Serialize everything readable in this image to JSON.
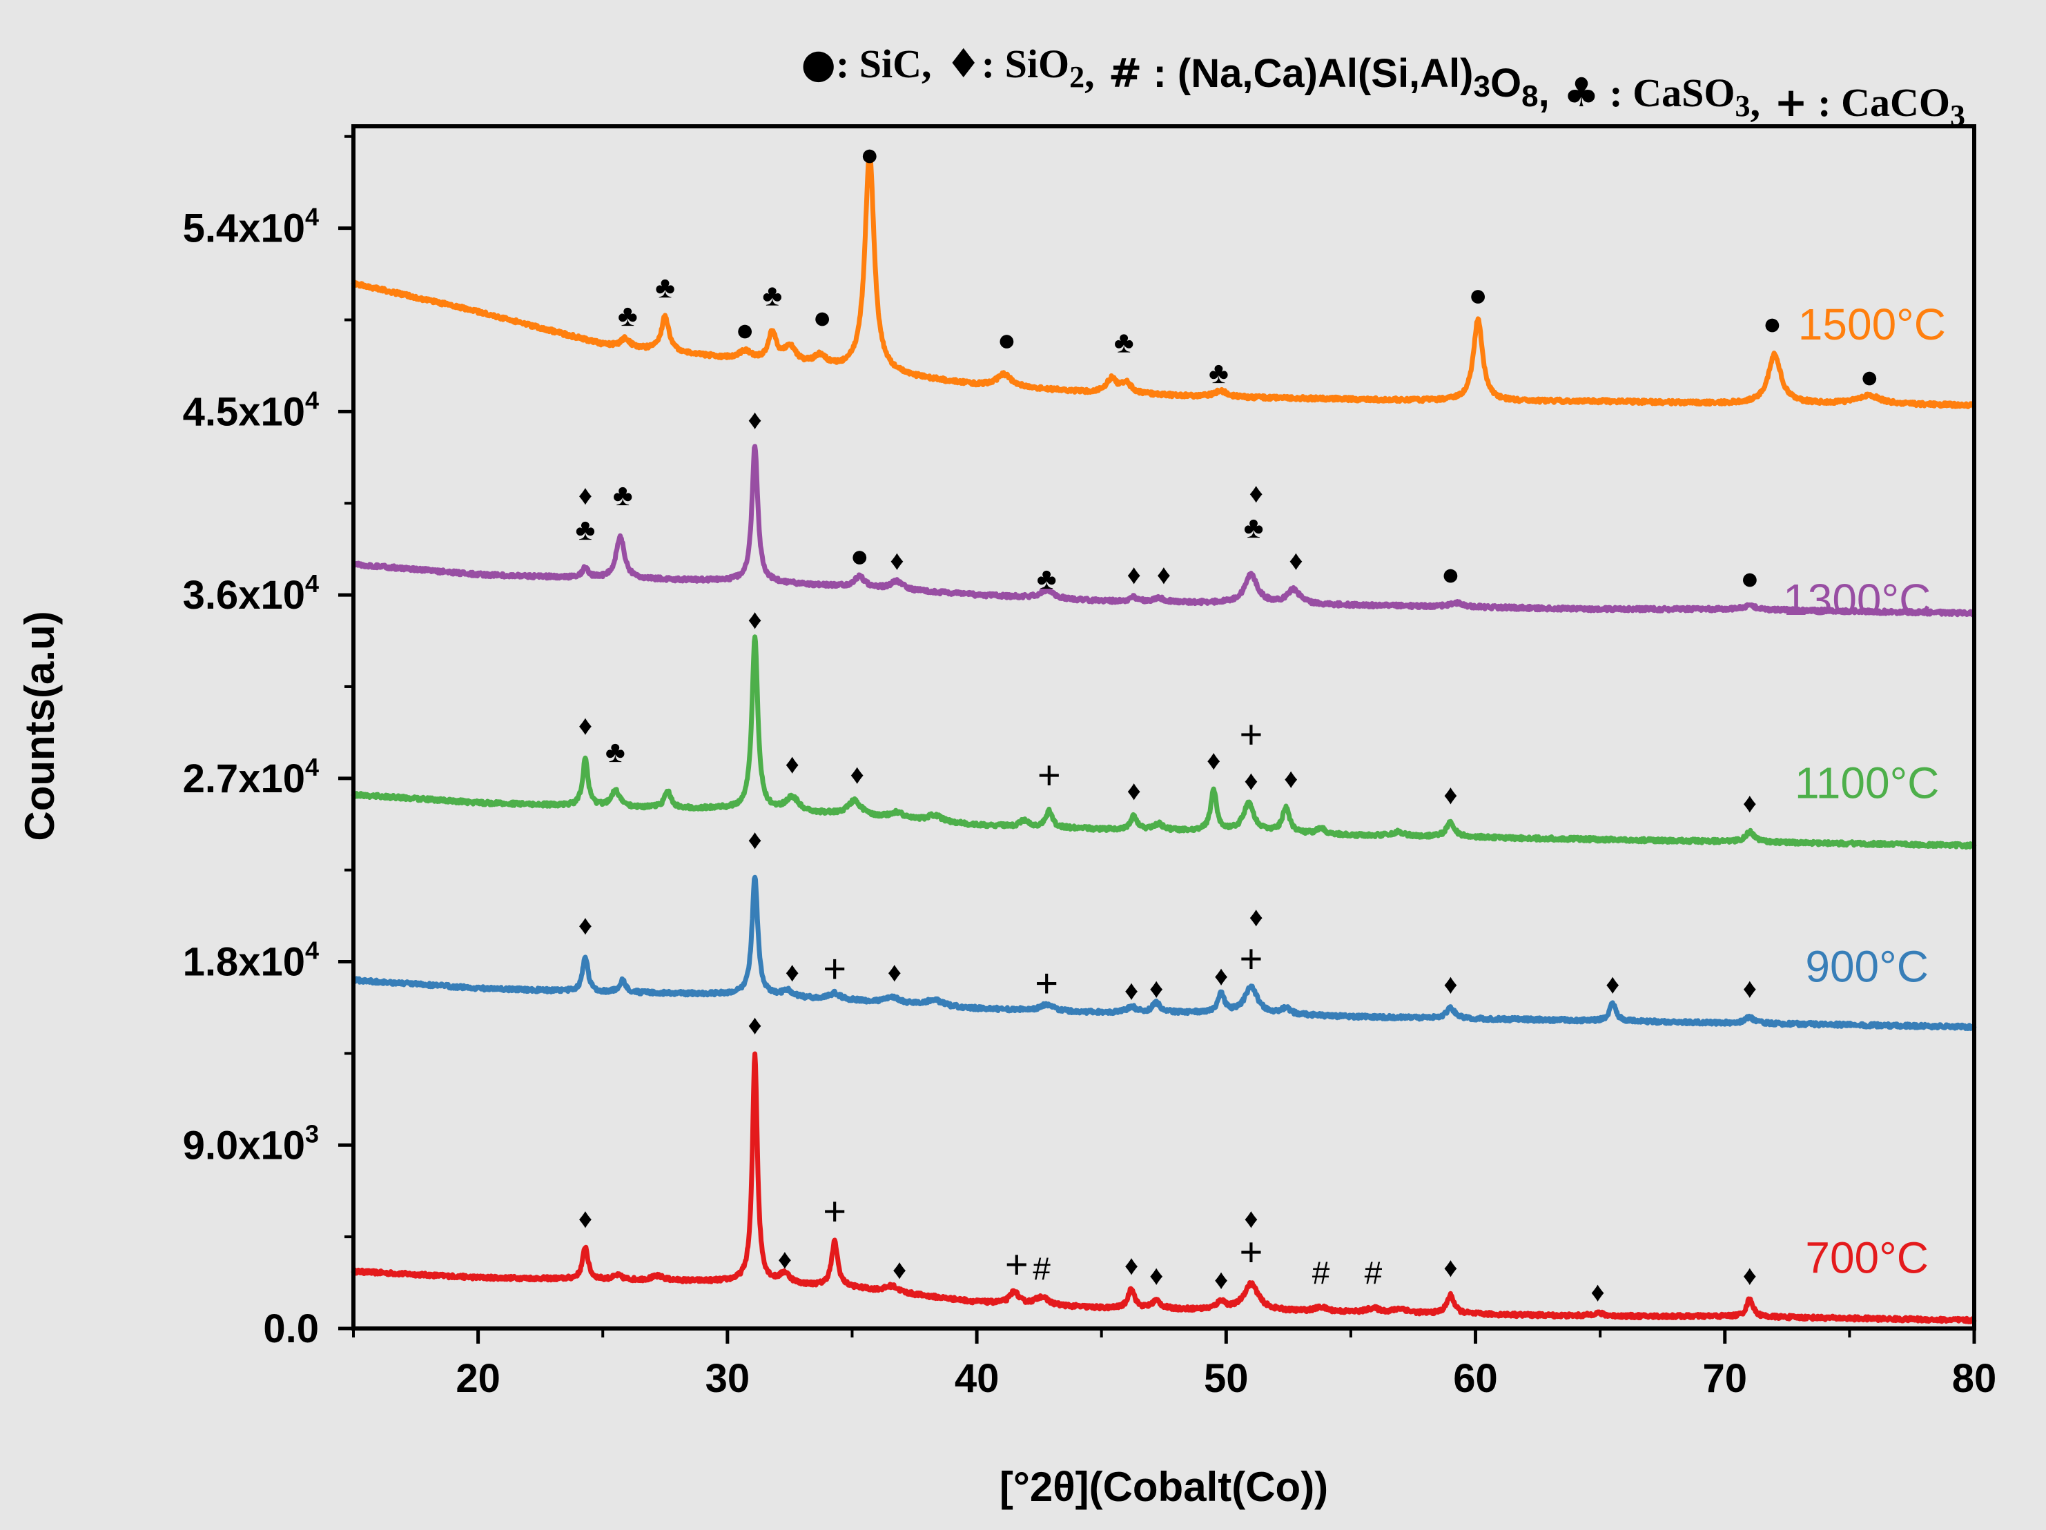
{
  "chart_data": {
    "type": "line",
    "xlabel": "[°2θ](Cobalt(Co))",
    "ylabel": "Counts(a.u)",
    "xlim": [
      15,
      80
    ],
    "ylim": [
      0,
      59000
    ],
    "x_ticks": [
      20,
      30,
      40,
      50,
      60,
      70,
      80
    ],
    "x_tick_labels": [
      "20",
      "30",
      "40",
      "50",
      "60",
      "70",
      "80"
    ],
    "y_ticks": [
      0,
      9000,
      18000,
      27000,
      36000,
      45000,
      54000
    ],
    "y_tick_labels": [
      {
        "mantissa": "0.0",
        "exp": ""
      },
      {
        "mantissa": "9.0x10",
        "exp": "3"
      },
      {
        "mantissa": "1.8x10",
        "exp": "4"
      },
      {
        "mantissa": "2.7x10",
        "exp": "4"
      },
      {
        "mantissa": "3.6x10",
        "exp": "4"
      },
      {
        "mantissa": "4.5x10",
        "exp": "4"
      },
      {
        "mantissa": "5.4x10",
        "exp": "4"
      }
    ],
    "grid": false,
    "legend": {
      "placement": "top",
      "entries": [
        {
          "symbol": "●",
          "label": ": SiC,"
        },
        {
          "symbol": "♦",
          "label": ": SiO",
          "sub": "2",
          "suffix": ","
        },
        {
          "symbol": "#",
          "label": " : (Na,Ca)Al(Si,Al)",
          "sub": "3",
          "label2": "O",
          "sub2": "8",
          "suffix": ","
        },
        {
          "symbol": "♣",
          "label": " : CaSO",
          "sub": "3",
          "suffix": ","
        },
        {
          "symbol": "+",
          "label": " : CaCO",
          "sub": "3",
          "suffix": ""
        }
      ]
    },
    "series": [
      {
        "name": "700°C",
        "color": "#e41a1c",
        "label_x": 75.7,
        "label_y": 3300,
        "baseline": [
          [
            15,
            2800
          ],
          [
            20,
            2500
          ],
          [
            25,
            2400
          ],
          [
            30,
            2300
          ],
          [
            35,
            2000
          ],
          [
            40,
            1300
          ],
          [
            45,
            1000
          ],
          [
            50,
            900
          ],
          [
            55,
            800
          ],
          [
            60,
            700
          ],
          [
            65,
            600
          ],
          [
            70,
            600
          ],
          [
            75,
            500
          ],
          [
            80,
            400
          ]
        ],
        "peaks": [
          [
            24.3,
            1600,
            0.13
          ],
          [
            25.6,
            200,
            0.2
          ],
          [
            27.2,
            200,
            0.3
          ],
          [
            31.1,
            11200,
            0.12
          ],
          [
            32.3,
            500,
            0.25
          ],
          [
            34.3,
            2200,
            0.15
          ],
          [
            36.6,
            300,
            0.3
          ],
          [
            41.5,
            600,
            0.2
          ],
          [
            42.6,
            400,
            0.3
          ],
          [
            46.2,
            1000,
            0.15
          ],
          [
            47.2,
            400,
            0.2
          ],
          [
            49.8,
            400,
            0.2
          ],
          [
            51.0,
            1300,
            0.35
          ],
          [
            53.8,
            200,
            0.3
          ],
          [
            55.9,
            200,
            0.3
          ],
          [
            57.0,
            200,
            0.3
          ],
          [
            59.0,
            900,
            0.18
          ],
          [
            64.9,
            150,
            0.3
          ],
          [
            71.0,
            900,
            0.15
          ]
        ],
        "markers": [
          {
            "x": 24.3,
            "y": 5300,
            "s": "♦"
          },
          {
            "x": 31.1,
            "y": 14800,
            "s": "♦"
          },
          {
            "x": 32.3,
            "y": 3300,
            "s": "♦"
          },
          {
            "x": 34.3,
            "y": 5600,
            "s": "+"
          },
          {
            "x": 36.9,
            "y": 2800,
            "s": "♦"
          },
          {
            "x": 41.6,
            "y": 3000,
            "s": "+"
          },
          {
            "x": 42.6,
            "y": 2800,
            "s": "#"
          },
          {
            "x": 46.2,
            "y": 3000,
            "s": "♦"
          },
          {
            "x": 47.2,
            "y": 2500,
            "s": "♦"
          },
          {
            "x": 49.8,
            "y": 2300,
            "s": "♦"
          },
          {
            "x": 51.0,
            "y": 5300,
            "s": "♦"
          },
          {
            "x": 51.0,
            "y": 3600,
            "s": "+"
          },
          {
            "x": 53.8,
            "y": 2600,
            "s": "#"
          },
          {
            "x": 55.9,
            "y": 2600,
            "s": "#"
          },
          {
            "x": 59.0,
            "y": 2900,
            "s": "♦"
          },
          {
            "x": 64.9,
            "y": 1700,
            "s": "♦"
          },
          {
            "x": 71.0,
            "y": 2500,
            "s": "♦"
          }
        ]
      },
      {
        "name": "900°C",
        "color": "#377eb8",
        "label_x": 75.7,
        "label_y": 17600,
        "baseline": [
          [
            15,
            17100
          ],
          [
            20,
            16700
          ],
          [
            25,
            16500
          ],
          [
            30,
            16400
          ],
          [
            35,
            16100
          ],
          [
            40,
            15700
          ],
          [
            45,
            15500
          ],
          [
            50,
            15500
          ],
          [
            55,
            15300
          ],
          [
            60,
            15200
          ],
          [
            65,
            15100
          ],
          [
            70,
            15000
          ],
          [
            75,
            14900
          ],
          [
            80,
            14800
          ]
        ],
        "peaks": [
          [
            24.3,
            1700,
            0.13
          ],
          [
            25.8,
            600,
            0.15
          ],
          [
            31.1,
            5800,
            0.14
          ],
          [
            32.4,
            300,
            0.25
          ],
          [
            34.3,
            300,
            0.25
          ],
          [
            36.6,
            300,
            0.3
          ],
          [
            38.3,
            300,
            0.35
          ],
          [
            42.8,
            300,
            0.3
          ],
          [
            46.2,
            300,
            0.2
          ],
          [
            47.2,
            500,
            0.18
          ],
          [
            49.8,
            900,
            0.15
          ],
          [
            51.0,
            1300,
            0.3
          ],
          [
            52.4,
            300,
            0.2
          ],
          [
            59.0,
            500,
            0.2
          ],
          [
            65.5,
            900,
            0.15
          ],
          [
            71.0,
            300,
            0.2
          ]
        ],
        "markers": [
          {
            "x": 24.3,
            "y": 19700,
            "s": "♦"
          },
          {
            "x": 31.1,
            "y": 23900,
            "s": "♦"
          },
          {
            "x": 32.6,
            "y": 17400,
            "s": "♦"
          },
          {
            "x": 34.3,
            "y": 17500,
            "s": "+"
          },
          {
            "x": 36.7,
            "y": 17400,
            "s": "♦"
          },
          {
            "x": 42.8,
            "y": 16800,
            "s": "+"
          },
          {
            "x": 46.2,
            "y": 16500,
            "s": "♦"
          },
          {
            "x": 47.2,
            "y": 16600,
            "s": "♦"
          },
          {
            "x": 49.8,
            "y": 17200,
            "s": "♦"
          },
          {
            "x": 51.2,
            "y": 20100,
            "s": "♦"
          },
          {
            "x": 51.0,
            "y": 18000,
            "s": "+"
          },
          {
            "x": 59.0,
            "y": 16800,
            "s": "♦"
          },
          {
            "x": 65.5,
            "y": 16800,
            "s": "♦"
          },
          {
            "x": 71.0,
            "y": 16600,
            "s": "♦"
          }
        ]
      },
      {
        "name": "1100°C",
        "color": "#4daf4a",
        "label_x": 75.7,
        "label_y": 26600,
        "baseline": [
          [
            15,
            26200
          ],
          [
            20,
            25800
          ],
          [
            25,
            25600
          ],
          [
            30,
            25500
          ],
          [
            35,
            25200
          ],
          [
            40,
            24700
          ],
          [
            45,
            24500
          ],
          [
            50,
            24400
          ],
          [
            55,
            24200
          ],
          [
            60,
            24100
          ],
          [
            65,
            24000
          ],
          [
            70,
            23900
          ],
          [
            75,
            23800
          ],
          [
            80,
            23700
          ]
        ],
        "peaks": [
          [
            24.3,
            2300,
            0.13
          ],
          [
            25.5,
            800,
            0.2
          ],
          [
            27.6,
            800,
            0.15
          ],
          [
            31.1,
            8500,
            0.14
          ],
          [
            32.6,
            700,
            0.3
          ],
          [
            35.1,
            700,
            0.3
          ],
          [
            36.8,
            300,
            0.3
          ],
          [
            38.3,
            300,
            0.35
          ],
          [
            41.9,
            300,
            0.2
          ],
          [
            42.9,
            800,
            0.15
          ],
          [
            46.3,
            700,
            0.15
          ],
          [
            47.3,
            300,
            0.2
          ],
          [
            49.5,
            2000,
            0.14
          ],
          [
            50.9,
            1400,
            0.25
          ],
          [
            52.4,
            1200,
            0.18
          ],
          [
            53.8,
            300,
            0.2
          ],
          [
            56.9,
            200,
            0.3
          ],
          [
            59.0,
            700,
            0.2
          ],
          [
            71.0,
            500,
            0.2
          ]
        ],
        "markers": [
          {
            "x": 24.3,
            "y": 29500,
            "s": "♦"
          },
          {
            "x": 25.5,
            "y": 28200,
            "s": "♣"
          },
          {
            "x": 31.1,
            "y": 34700,
            "s": "♦"
          },
          {
            "x": 32.6,
            "y": 27600,
            "s": "♦"
          },
          {
            "x": 35.2,
            "y": 27100,
            "s": "♦"
          },
          {
            "x": 42.9,
            "y": 27000,
            "s": "+"
          },
          {
            "x": 46.3,
            "y": 26300,
            "s": "♦"
          },
          {
            "x": 49.5,
            "y": 27800,
            "s": "♦"
          },
          {
            "x": 51.0,
            "y": 29000,
            "s": "+"
          },
          {
            "x": 51.0,
            "y": 26800,
            "s": "♦"
          },
          {
            "x": 52.6,
            "y": 26900,
            "s": "♦"
          },
          {
            "x": 59.0,
            "y": 26100,
            "s": "♦"
          },
          {
            "x": 71.0,
            "y": 25700,
            "s": "♦"
          }
        ]
      },
      {
        "name": "1300°C",
        "color": "#984ea3",
        "label_x": 75.3,
        "label_y": 35600,
        "baseline": [
          [
            15,
            37500
          ],
          [
            20,
            37000
          ],
          [
            25,
            36800
          ],
          [
            30,
            36700
          ],
          [
            35,
            36400
          ],
          [
            40,
            36000
          ],
          [
            45,
            35700
          ],
          [
            50,
            35600
          ],
          [
            55,
            35500
          ],
          [
            60,
            35400
          ],
          [
            65,
            35300
          ],
          [
            70,
            35300
          ],
          [
            75,
            35200
          ],
          [
            80,
            35100
          ]
        ],
        "peaks": [
          [
            24.3,
            500,
            0.15
          ],
          [
            25.7,
            2100,
            0.2
          ],
          [
            31.1,
            6700,
            0.14
          ],
          [
            35.3,
            500,
            0.25
          ],
          [
            36.8,
            400,
            0.3
          ],
          [
            42.8,
            400,
            0.3
          ],
          [
            46.3,
            200,
            0.2
          ],
          [
            47.3,
            200,
            0.2
          ],
          [
            51.0,
            1400,
            0.3
          ],
          [
            52.7,
            700,
            0.3
          ],
          [
            59.2,
            200,
            0.3
          ],
          [
            71.0,
            200,
            0.3
          ]
        ],
        "markers": [
          {
            "x": 24.3,
            "y": 40800,
            "s": "♦"
          },
          {
            "x": 24.3,
            "y": 39100,
            "s": "♣"
          },
          {
            "x": 25.8,
            "y": 40800,
            "s": "♣"
          },
          {
            "x": 31.1,
            "y": 44500,
            "s": "♦"
          },
          {
            "x": 35.3,
            "y": 37800,
            "s": "●"
          },
          {
            "x": 36.8,
            "y": 37600,
            "s": "♦"
          },
          {
            "x": 42.8,
            "y": 36700,
            "s": "♣"
          },
          {
            "x": 46.3,
            "y": 36900,
            "s": "♦"
          },
          {
            "x": 47.5,
            "y": 36900,
            "s": "♦"
          },
          {
            "x": 51.2,
            "y": 40900,
            "s": "♦"
          },
          {
            "x": 51.1,
            "y": 39200,
            "s": "♣"
          },
          {
            "x": 52.8,
            "y": 37600,
            "s": "♦"
          },
          {
            "x": 59.0,
            "y": 36900,
            "s": "●"
          },
          {
            "x": 71.0,
            "y": 36700,
            "s": "●"
          }
        ]
      },
      {
        "name": "1500°C",
        "color": "#ff7f0e",
        "label_x": 75.9,
        "label_y": 49100,
        "baseline": [
          [
            15,
            51300
          ],
          [
            20,
            49900
          ],
          [
            25,
            48300
          ],
          [
            30,
            47600
          ],
          [
            35,
            47000
          ],
          [
            40,
            46300
          ],
          [
            45,
            45900
          ],
          [
            50,
            45700
          ],
          [
            55,
            45600
          ],
          [
            60,
            45500
          ],
          [
            65,
            45500
          ],
          [
            70,
            45400
          ],
          [
            75,
            45400
          ],
          [
            80,
            45300
          ]
        ],
        "peaks": [
          [
            25.9,
            400,
            0.2
          ],
          [
            27.5,
            1700,
            0.18
          ],
          [
            30.7,
            400,
            0.3
          ],
          [
            31.8,
            1400,
            0.2
          ],
          [
            32.5,
            800,
            0.3
          ],
          [
            33.7,
            500,
            0.3
          ],
          [
            35.7,
            10800,
            0.22
          ],
          [
            41.1,
            600,
            0.35
          ],
          [
            45.4,
            700,
            0.25
          ],
          [
            46.0,
            500,
            0.25
          ],
          [
            49.8,
            300,
            0.3
          ],
          [
            60.1,
            4000,
            0.22
          ],
          [
            72.0,
            2400,
            0.3
          ],
          [
            75.8,
            400,
            0.5
          ]
        ],
        "markers": [
          {
            "x": 26.0,
            "y": 49600,
            "s": "♣"
          },
          {
            "x": 27.5,
            "y": 51000,
            "s": "♣"
          },
          {
            "x": 30.7,
            "y": 48900,
            "s": "●"
          },
          {
            "x": 31.8,
            "y": 50600,
            "s": "♣"
          },
          {
            "x": 33.8,
            "y": 49500,
            "s": "●"
          },
          {
            "x": 35.7,
            "y": 57500,
            "s": "●"
          },
          {
            "x": 41.2,
            "y": 48400,
            "s": "●"
          },
          {
            "x": 45.9,
            "y": 48300,
            "s": "♣"
          },
          {
            "x": 49.7,
            "y": 46800,
            "s": "♣"
          },
          {
            "x": 60.1,
            "y": 50600,
            "s": "●"
          },
          {
            "x": 71.9,
            "y": 49200,
            "s": "●"
          },
          {
            "x": 75.8,
            "y": 46600,
            "s": "●"
          }
        ]
      }
    ]
  }
}
